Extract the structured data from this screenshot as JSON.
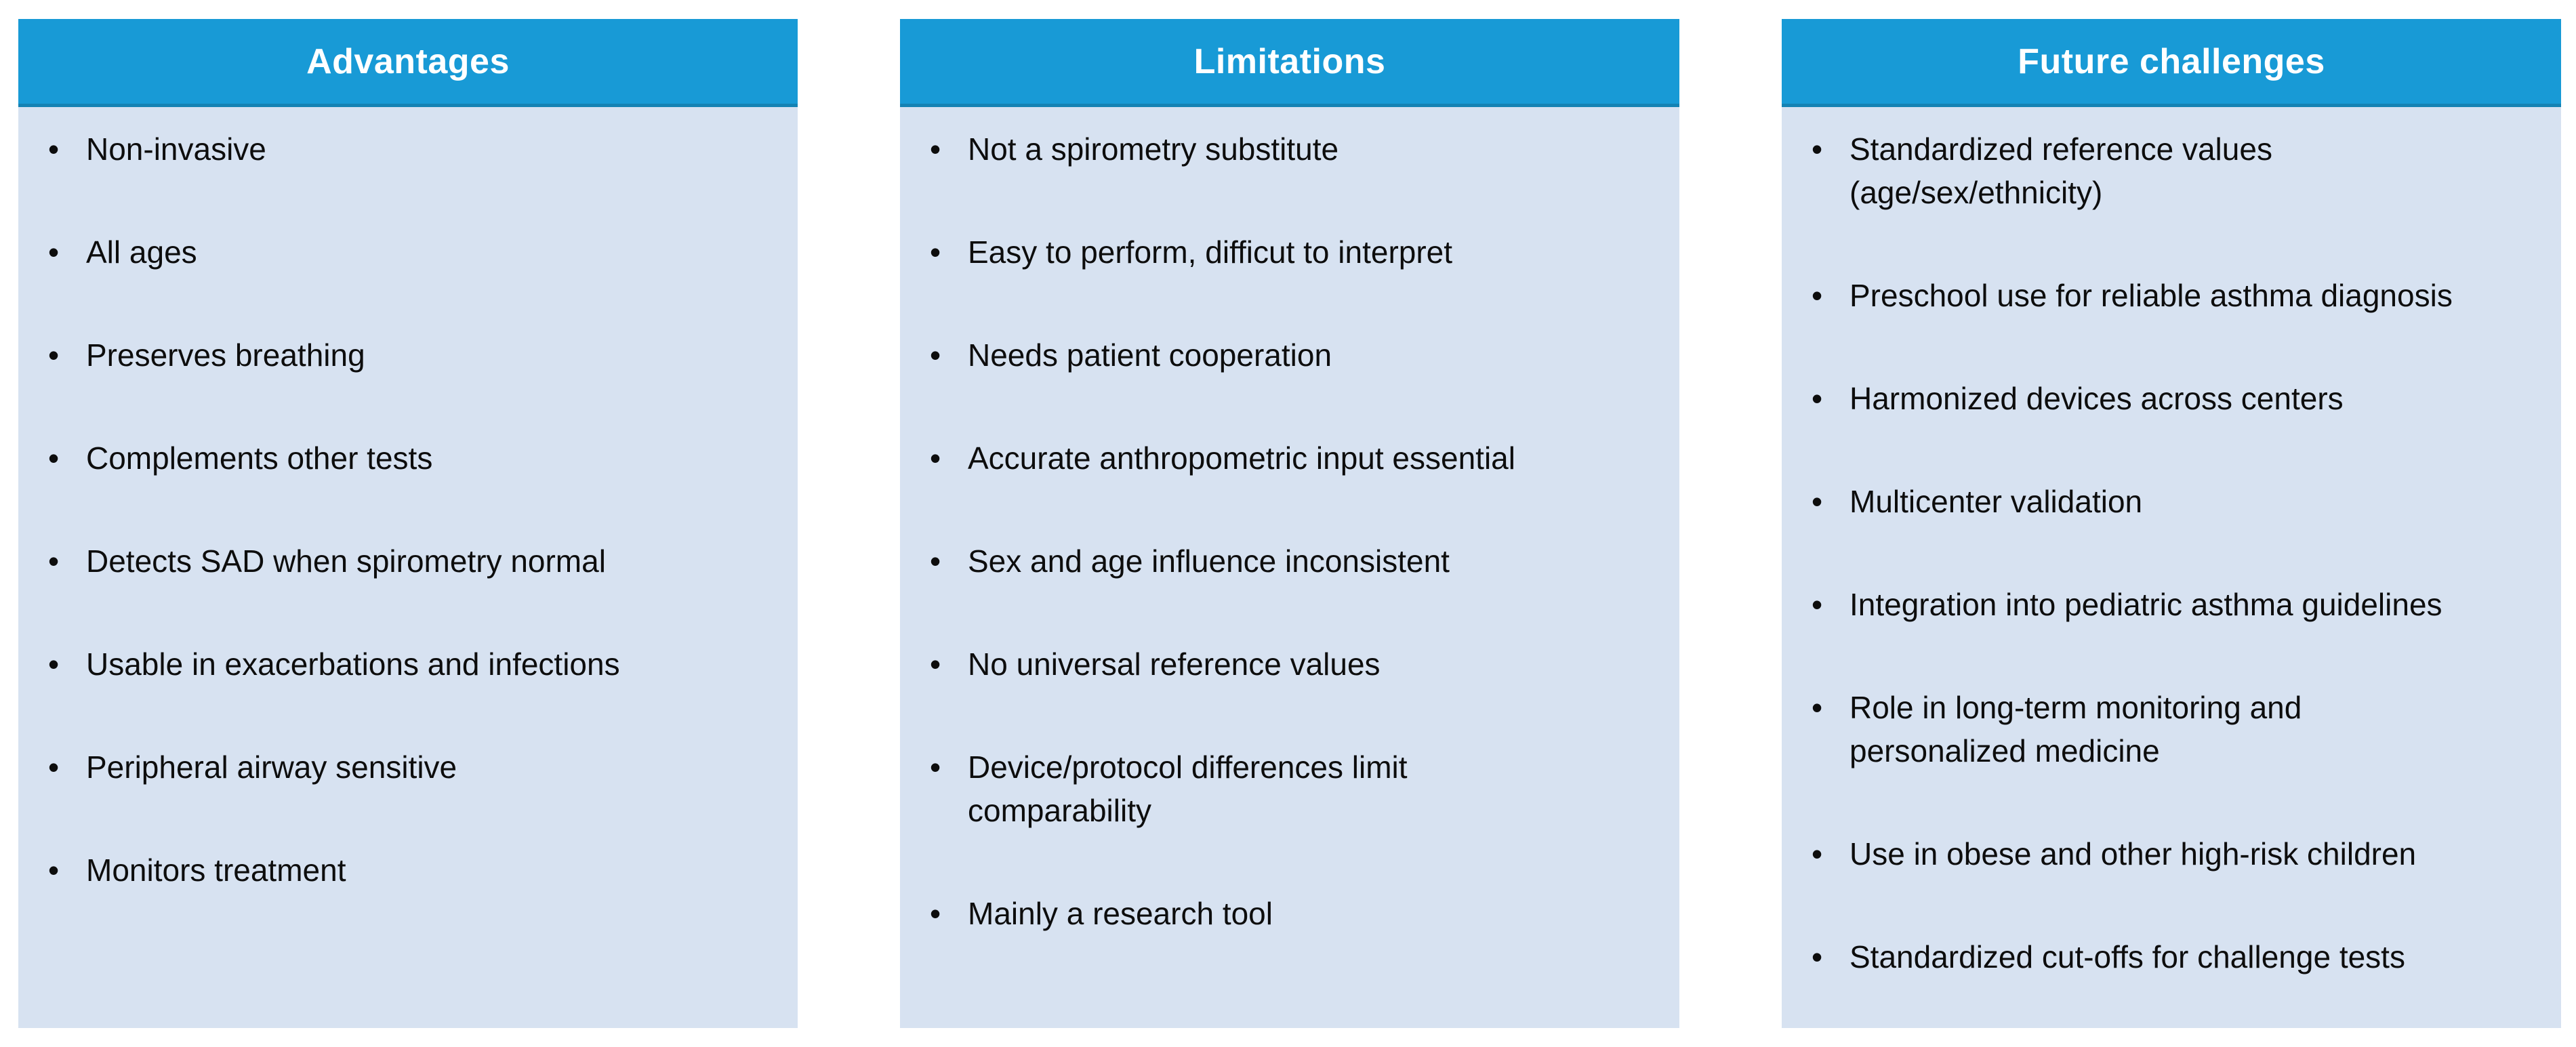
{
  "figure": {
    "type": "three-panel-summary-table",
    "columns": [
      {
        "header": "Advantages",
        "items": [
          "Non-invasive",
          "All ages",
          "Preserves breathing",
          "Complements other tests",
          "Detects SAD when spirometry normal",
          "Usable in exacerbations and infections",
          "Peripheral airway sensitive",
          "Monitors treatment"
        ]
      },
      {
        "header": "Limitations",
        "items": [
          "Not a spirometry substitute",
          "Easy to perform, difficut to interpret",
          "Needs patient cooperation",
          "Accurate anthropometric input essential",
          "Sex and age influence inconsistent",
          "No universal reference values",
          "Device/protocol differences limit\ncomparability",
          "Mainly a research tool"
        ]
      },
      {
        "header": "Future challenges",
        "items": [
          "Standardized reference values\n(age/sex/ethnicity)",
          "Preschool use for reliable asthma diagnosis",
          "Harmonized devices across centers",
          "Multicenter validation",
          "Integration into pediatric asthma guidelines",
          "Role in long-term monitoring and\npersonalized medicine",
          "Use in obese and other high-risk children",
          "Standardized cut-offs for challenge tests"
        ]
      }
    ],
    "bullet_glyph": "•",
    "colors": {
      "header_bg": "#189AD6",
      "header_edge": "#1482B4",
      "header_text": "#FFFFFF",
      "panel_bg": "#D7E2F1",
      "body_text": "#0D0D0D",
      "page_bg": "#FFFFFF"
    }
  }
}
